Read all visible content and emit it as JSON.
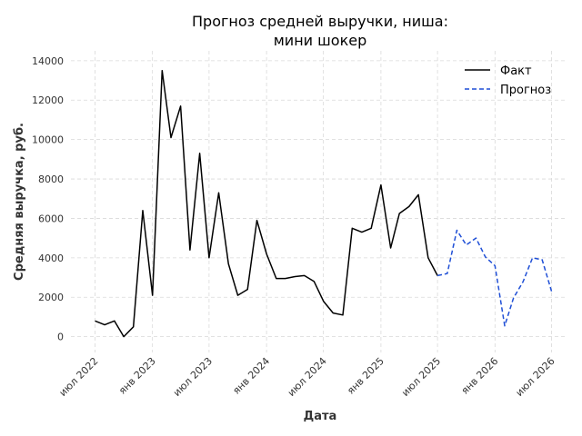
{
  "chart_data": {
    "type": "line",
    "title": [
      "Прогноз средней выручки, ниша:",
      "мини шокер"
    ],
    "xlabel": "Дата",
    "ylabel": "Средняя выручка, руб.",
    "ylim": [
      -800,
      14500
    ],
    "yticks": [
      0,
      2000,
      4000,
      6000,
      8000,
      10000,
      12000,
      14000
    ],
    "xlim": [
      "2022-04-15",
      "2026-08-15"
    ],
    "xticks": [
      {
        "date": "2022-07-01",
        "label": "июл 2022"
      },
      {
        "date": "2023-01-01",
        "label": "янв 2023"
      },
      {
        "date": "2023-07-01",
        "label": "июл 2023"
      },
      {
        "date": "2024-01-01",
        "label": "янв 2024"
      },
      {
        "date": "2024-07-01",
        "label": "июл 2024"
      },
      {
        "date": "2025-01-01",
        "label": "янв 2025"
      },
      {
        "date": "2025-07-01",
        "label": "июл 2025"
      },
      {
        "date": "2026-01-01",
        "label": "янв 2026"
      },
      {
        "date": "2026-07-01",
        "label": "июл 2026"
      }
    ],
    "grid": true,
    "legend_position": "top-right",
    "series": [
      {
        "name": "Факт",
        "color": "#000000",
        "dash": false,
        "x": [
          "2022-07-01",
          "2022-08-01",
          "2022-09-01",
          "2022-10-01",
          "2022-11-01",
          "2022-12-01",
          "2023-01-01",
          "2023-02-01",
          "2023-03-01",
          "2023-04-01",
          "2023-05-01",
          "2023-06-01",
          "2023-07-01",
          "2023-08-01",
          "2023-09-01",
          "2023-10-01",
          "2023-11-01",
          "2023-12-01",
          "2024-01-01",
          "2024-02-01",
          "2024-03-01",
          "2024-04-01",
          "2024-05-01",
          "2024-06-01",
          "2024-07-01",
          "2024-08-01",
          "2024-09-01",
          "2024-10-01",
          "2024-11-01",
          "2024-12-01",
          "2025-01-01",
          "2025-02-01",
          "2025-03-01",
          "2025-04-01",
          "2025-05-01",
          "2025-06-01",
          "2025-07-01"
        ],
        "values": [
          800,
          600,
          800,
          0,
          500,
          6400,
          2100,
          13500,
          10100,
          11700,
          4400,
          9300,
          4000,
          7300,
          3700,
          2100,
          2400,
          5900,
          4200,
          2950,
          2950,
          3050,
          3100,
          2800,
          1800,
          1200,
          1100,
          5500,
          5300,
          5500,
          7700,
          4500,
          6250,
          6600,
          7200,
          4000,
          3100
        ]
      },
      {
        "name": "Прогноз",
        "color": "#1f4fd6",
        "dash": true,
        "x": [
          "2025-07-01",
          "2025-08-01",
          "2025-09-01",
          "2025-10-01",
          "2025-11-01",
          "2025-12-01",
          "2026-01-01",
          "2026-02-01",
          "2026-03-01",
          "2026-04-01",
          "2026-05-01",
          "2026-06-01",
          "2026-07-01"
        ],
        "values": [
          3100,
          3200,
          5400,
          4650,
          5000,
          4050,
          3600,
          550,
          1950,
          2800,
          4000,
          3900,
          2300
        ]
      }
    ]
  }
}
